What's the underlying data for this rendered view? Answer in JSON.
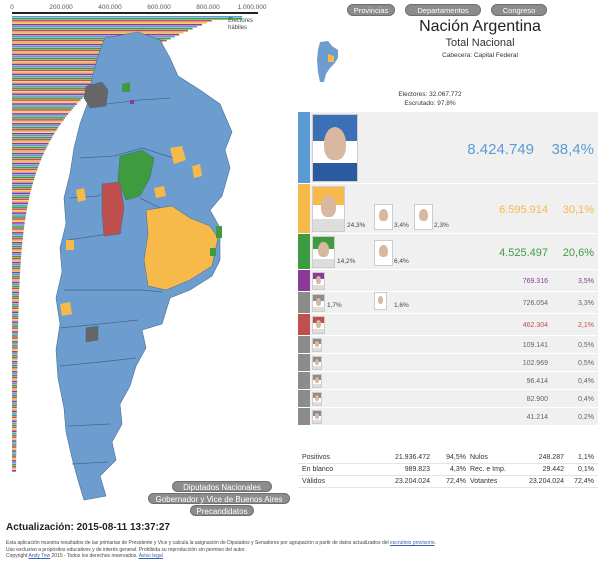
{
  "histogram": {
    "ticks": [
      "0",
      "200.000",
      "400.000",
      "600.000",
      "800.000",
      "1.000.000"
    ],
    "electores_label": "Electores hábiles"
  },
  "map_buttons": {
    "diputados": "Diputados Nacionales",
    "gobernador": "Gobernador y Vice de Buenos Aires",
    "precandidatos": "Precandidatos"
  },
  "nav": {
    "provincias": "Provincias",
    "departamentos": "Departamentos",
    "congreso": "Congreso"
  },
  "header": {
    "title": "Nación Argentina",
    "subtitle": "Total Nacional",
    "cabecera": "Cabecera: Capital Federal",
    "electores": "Electores: 32.067.772",
    "escrutado": "Escrutado: 97,8%"
  },
  "colors": {
    "fpv": "#5b9bd5",
    "cambiemos": "#f6b94a",
    "una": "#3f9b3f",
    "purple": "#8a3b99",
    "red": "#c0504d",
    "gray": "#8c8c8c"
  },
  "results": [
    {
      "votes": "8.424.749",
      "pct": "38,4%",
      "color": "#5b9bd5",
      "big": true,
      "subs": []
    },
    {
      "votes": "6.595.914",
      "pct": "30,1%",
      "color": "#f6b94a",
      "subs": [
        "24,3%",
        "3,4%",
        "2,3%"
      ]
    },
    {
      "votes": "4.525.497",
      "pct": "20,6%",
      "color": "#3f9b3f",
      "subs": [
        "14,2%",
        "6,4%"
      ]
    },
    {
      "votes": "769.316",
      "pct": "3,5%",
      "color": "#8a3b99",
      "subs": []
    },
    {
      "votes": "726.054",
      "pct": "3,3%",
      "color": "#8c8c8c",
      "subs": [
        "1,7%",
        "1,6%"
      ]
    },
    {
      "votes": "462.304",
      "pct": "2,1%",
      "color": "#c0504d",
      "subs": []
    },
    {
      "votes": "109.141",
      "pct": "0,5%",
      "color": "#8c8c8c",
      "subs": []
    },
    {
      "votes": "102.969",
      "pct": "0,5%",
      "color": "#8c8c8c",
      "subs": []
    },
    {
      "votes": "96.414",
      "pct": "0,4%",
      "color": "#8c8c8c",
      "subs": []
    },
    {
      "votes": "82.900",
      "pct": "0,4%",
      "color": "#8c8c8c",
      "subs": []
    },
    {
      "votes": "41.214",
      "pct": "0,2%",
      "color": "#8c8c8c",
      "subs": []
    }
  ],
  "totals": {
    "positivos_label": "Positivos",
    "positivos_value": "21.936.472",
    "positivos_pct": "94,5%",
    "nulos_label": "Nulos",
    "nulos_value": "248.287",
    "nulos_pct": "1,1%",
    "blanco_label": "En blanco",
    "blanco_value": "989.823",
    "blanco_pct": "4,3%",
    "recimp_label": "Rec. e Imp.",
    "recimp_value": "29.442",
    "recimp_pct": "0,1%",
    "validos_label": "Válidos",
    "validos_value": "23.204.024",
    "validos_pct": "72,4%",
    "votantes_label": "Votantes",
    "votantes_value": "23.204.024",
    "votantes_pct": "72,4%"
  },
  "actualizacion": "Actualización: 2015-08-11 13:37:27",
  "footer": {
    "line1_a": "Esta aplicación muestra resultados de las primarias de Presidente y Vice y calcula la asignación de Diputados y Senadores por agrupación a partir de datos actualizados del ",
    "line1_link": "escrutinio provisorio",
    "line1_b": ".",
    "line2": "Uso exclusivo a propósitos educativos y de interés general. Prohibida su reproducción sin permiso del autor.",
    "line3_a": "Copyright ",
    "line3_author": "Andy Tow",
    "line3_b": " 2015 - Todos los derechos reservados. ",
    "line3_link": "Aviso legal"
  }
}
